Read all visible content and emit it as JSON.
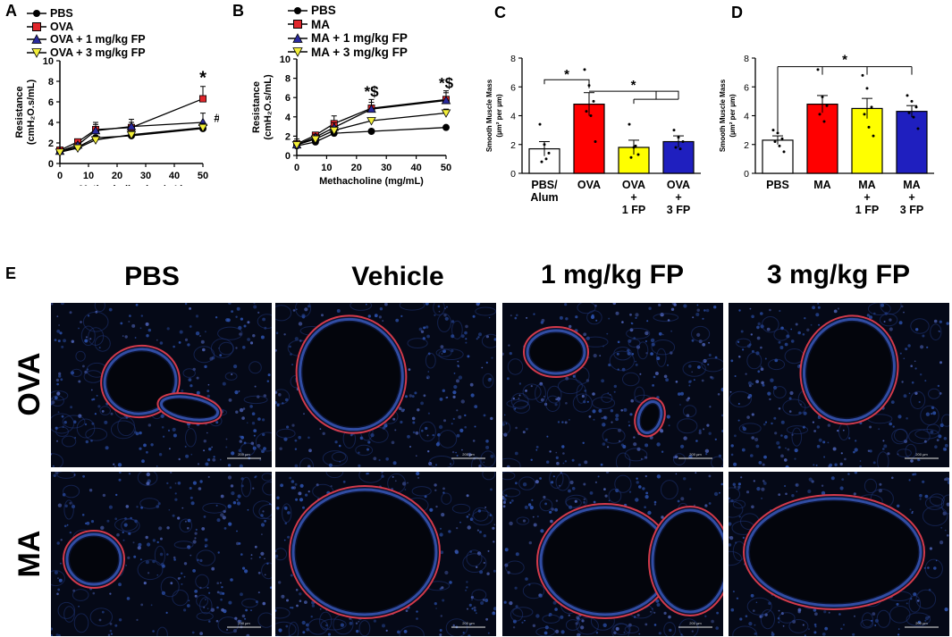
{
  "panels": {
    "A": {
      "letter": "A",
      "legend": [
        {
          "label": "PBS",
          "marker": "circle",
          "color": "#000000"
        },
        {
          "label": "OVA",
          "marker": "square",
          "color": "#e0262b"
        },
        {
          "label": "OVA + 1 mg/kg FP",
          "marker": "triangle",
          "color": "#2a2a9e"
        },
        {
          "label": "OVA + 3 mg/kg FP",
          "marker": "triangle-down",
          "color": "#f2ee3a"
        }
      ],
      "annotations": {
        "star": "*",
        "hash": "#",
        "amp": "&"
      }
    },
    "B": {
      "letter": "B",
      "legend": [
        {
          "label": "PBS",
          "marker": "circle",
          "color": "#000000"
        },
        {
          "label": "MA",
          "marker": "square",
          "color": "#e0262b"
        },
        {
          "label": "MA + 1 mg/kg FP",
          "marker": "triangle",
          "color": "#2a2a9e"
        },
        {
          "label": "MA + 3 mg/kg FP",
          "marker": "triangle-down",
          "color": "#f2ee3a"
        }
      ],
      "annotations": {
        "star25": "*$",
        "star50": "*$"
      }
    },
    "C": {
      "letter": "C",
      "annotations": {
        "sig1": "*",
        "sig2": "*"
      }
    },
    "D": {
      "letter": "D",
      "annotations": {
        "sig1": "*"
      }
    },
    "E": {
      "letter": "E",
      "columns": [
        "PBS",
        "Vehicle",
        "1 mg/kg FP",
        "3 mg/kg FP"
      ],
      "rows": [
        "OVA",
        "MA"
      ],
      "scale_bar_text": "200 µm"
    }
  },
  "chart_data": [
    {
      "id": "A",
      "type": "line",
      "xlabel": "Methacholine (mg/mL)",
      "ylabel": "Resistance (cmH₂O.s/mL)",
      "xlim": [
        0,
        50
      ],
      "ylim": [
        0,
        10
      ],
      "xticks": [
        0,
        10,
        20,
        30,
        40,
        50
      ],
      "yticks": [
        0,
        2,
        4,
        6,
        8,
        10
      ],
      "x": [
        0,
        6.25,
        12.5,
        25,
        50
      ],
      "series": [
        {
          "name": "PBS",
          "values": [
            1.2,
            1.6,
            2.5,
            2.7,
            3.4
          ],
          "err": [
            0.1,
            0.1,
            0.2,
            0.2,
            0.3
          ],
          "marker": "circle",
          "color": "#000000"
        },
        {
          "name": "OVA",
          "values": [
            1.3,
            2.1,
            3.3,
            3.5,
            6.3
          ],
          "err": [
            0.1,
            0.2,
            0.5,
            0.5,
            1.2
          ],
          "marker": "square",
          "color": "#e0262b"
        },
        {
          "name": "OVA + 1 mg/kg FP",
          "values": [
            1.2,
            1.8,
            3.2,
            3.6,
            4.0
          ],
          "err": [
            0.1,
            0.2,
            0.8,
            0.7,
            0.9
          ],
          "marker": "triangle",
          "color": "#2a2a9e"
        },
        {
          "name": "OVA + 3 mg/kg FP",
          "values": [
            1.1,
            1.5,
            2.3,
            2.8,
            3.5
          ],
          "err": [
            0.1,
            0.1,
            0.2,
            0.2,
            0.4
          ],
          "marker": "triangle-down",
          "color": "#f2ee3a"
        }
      ]
    },
    {
      "id": "B",
      "type": "line",
      "xlabel": "Methacholine (mg/mL)",
      "ylabel": "Resistance (cmH₂O.s/mL)",
      "xlim": [
        0,
        50
      ],
      "ylim": [
        0,
        10
      ],
      "xticks": [
        0,
        10,
        20,
        30,
        40,
        50
      ],
      "yticks": [
        0,
        2,
        4,
        6,
        8,
        10
      ],
      "x": [
        0,
        6.25,
        12.5,
        25,
        50
      ],
      "series": [
        {
          "name": "PBS",
          "values": [
            1.0,
            1.4,
            2.3,
            2.5,
            2.9
          ],
          "err": [
            0.1,
            0.1,
            0.2,
            0.2,
            0.1
          ],
          "marker": "circle",
          "color": "#000000"
        },
        {
          "name": "MA",
          "values": [
            1.2,
            2.1,
            3.3,
            4.9,
            5.8
          ],
          "err": [
            0.5,
            0.3,
            0.8,
            0.9,
            0.9
          ],
          "marker": "square",
          "color": "#e0262b"
        },
        {
          "name": "MA + 1 mg/kg FP",
          "values": [
            1.1,
            1.9,
            2.9,
            4.8,
            5.7
          ],
          "err": [
            0.3,
            0.3,
            0.5,
            0.7,
            0.8
          ],
          "marker": "triangle",
          "color": "#2a2a9e"
        },
        {
          "name": "MA + 3 mg/kg FP",
          "values": [
            1.1,
            1.7,
            2.6,
            3.6,
            4.4
          ],
          "err": [
            0.2,
            0.2,
            0.3,
            0.3,
            0.4
          ],
          "marker": "triangle-down",
          "color": "#f2ee3a"
        }
      ]
    },
    {
      "id": "C",
      "type": "bar",
      "ylabel": "Smooth Muscle Mass (µm² per µm)",
      "ylim": [
        0,
        8
      ],
      "yticks": [
        0,
        2,
        4,
        6,
        8
      ],
      "categories": [
        [
          "PBS/",
          "Alum"
        ],
        [
          "OVA"
        ],
        [
          "OVA",
          "+",
          "1 FP"
        ],
        [
          "OVA",
          "+",
          "3 FP"
        ]
      ],
      "values": [
        1.7,
        4.8,
        1.8,
        2.2
      ],
      "err": [
        0.5,
        0.8,
        0.5,
        0.4
      ],
      "colors": [
        "#ffffff",
        "#ff0000",
        "#ffff00",
        "#1f1fbf"
      ],
      "points": [
        [
          3.4,
          2.0,
          1.4,
          0.8,
          1.0
        ],
        [
          7.2,
          6.1,
          5.0,
          4.3,
          4.0,
          2.2
        ],
        [
          3.4,
          1.8,
          1.3,
          1.1,
          1.9
        ],
        [
          3.0,
          2.5,
          2.2,
          1.8,
          1.7
        ]
      ]
    },
    {
      "id": "D",
      "type": "bar",
      "ylabel": "Smooth Muscle Mass (µm² per µm)",
      "ylim": [
        0,
        8
      ],
      "yticks": [
        0,
        2,
        4,
        6,
        8
      ],
      "categories": [
        [
          "PBS"
        ],
        [
          "MA"
        ],
        [
          "MA",
          "+",
          "1 FP"
        ],
        [
          "MA",
          "+",
          "3 FP"
        ]
      ],
      "values": [
        2.3,
        4.8,
        4.5,
        4.3
      ],
      "err": [
        0.3,
        0.6,
        0.7,
        0.4
      ],
      "colors": [
        "#ffffff",
        "#ff0000",
        "#ffff00",
        "#1f1fbf"
      ],
      "points": [
        [
          3.0,
          2.8,
          2.4,
          2.2,
          1.9,
          1.5
        ],
        [
          7.2,
          5.3,
          4.7,
          4.1,
          3.6
        ],
        [
          6.8,
          5.9,
          4.6,
          4.1,
          3.2,
          2.6
        ],
        [
          5.4,
          5.0,
          4.6,
          4.2,
          3.9,
          3.1
        ]
      ]
    }
  ]
}
